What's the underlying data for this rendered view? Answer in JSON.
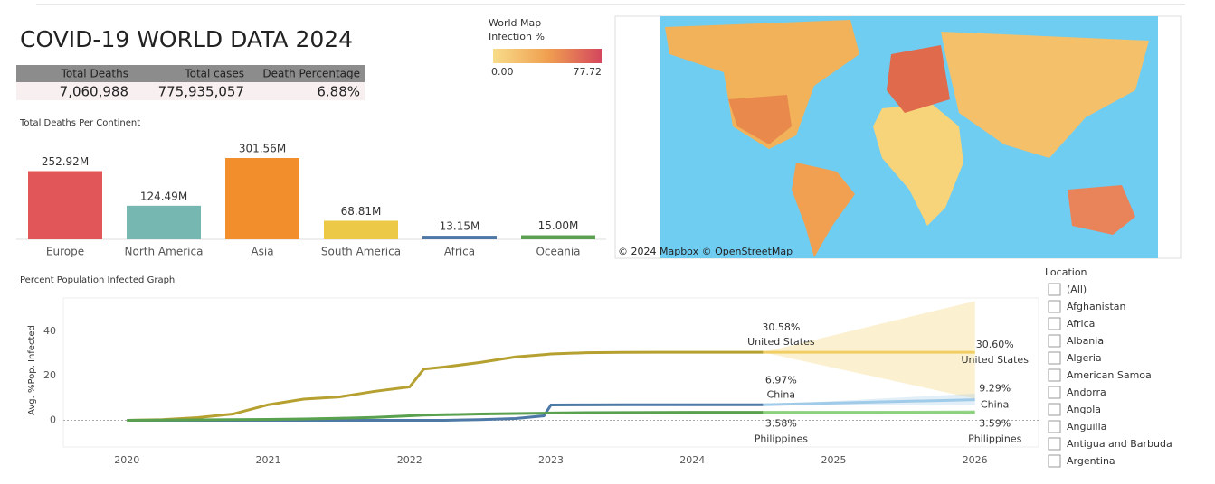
{
  "title": "COVID-19 WORLD DATA 2024",
  "kpi": {
    "headers": [
      "Total Deaths",
      "Total cases",
      "Death Percentage"
    ],
    "values": [
      "7,060,988",
      "775,935,057",
      "6.88%"
    ]
  },
  "map": {
    "legend_title": "World Map",
    "legend_subtitle": "Infection %",
    "legend_ticks": [
      {
        "value": 0,
        "label": "0.00"
      },
      77.72
    ],
    "colors": [
      "#f7dc8a",
      "#f0a050",
      "#d4475e"
    ],
    "attribution": "© 2024 Mapbox © OpenStreetMap"
  },
  "filter": {
    "title": "Location",
    "items": [
      "(All)",
      "Afghanistan",
      "Africa",
      "Albania",
      "Algeria",
      "American Samoa",
      "Andorra",
      "Angola",
      "Anguilla",
      "Antigua and Barbuda",
      "Argentina"
    ]
  },
  "chart_data": [
    {
      "type": "bar",
      "title": "Total Deaths Per Continent",
      "categories": [
        "Europe",
        "North America",
        "Asia",
        "South America",
        "Africa",
        "Oceania"
      ],
      "values": [
        252.92,
        124.49,
        301.56,
        68.81,
        13.15,
        15.0
      ],
      "value_labels": [
        "252.92M",
        "124.49M",
        "301.56M",
        "68.81M",
        "13.15M",
        "15.00M"
      ],
      "colors": [
        "#e15759",
        "#76b7b2",
        "#f28e2b",
        "#edc948",
        "#4e79a7",
        "#59a14f"
      ]
    },
    {
      "type": "line",
      "title": "Percent Population Infected Graph",
      "y_label": "Avg. %Pop. Infected",
      "x": [
        2020,
        2020.25,
        2020.5,
        2020.75,
        2021,
        2021.25,
        2021.5,
        2021.75,
        2022,
        2022.1,
        2022.25,
        2022.5,
        2022.75,
        2022.95,
        2023,
        2023.25,
        2023.5,
        2023.75,
        2024,
        2024.25,
        2024.5
      ],
      "xlim": [
        2019.55,
        2026.45
      ],
      "xticks": [
        2020,
        2021,
        2022,
        2023,
        2024,
        2025,
        2026
      ],
      "ylim": [
        -12,
        55
      ],
      "yticks": [
        0,
        20,
        40
      ],
      "series": [
        {
          "name": "United States",
          "color": "#b5a030",
          "values": [
            0,
            0.3,
            1.2,
            2.8,
            7,
            9.5,
            10.5,
            13,
            15,
            23,
            24,
            26,
            28.5,
            29.5,
            29.8,
            30.4,
            30.55,
            30.58,
            30.58,
            30.58,
            30.58
          ],
          "forecast": {
            "x": [
              2024.5,
              2026
            ],
            "values": [
              30.58,
              30.6
            ],
            "value_labels": [
              "30.58%",
              "30.60%"
            ],
            "lower": [
              30.58,
              9.7
            ],
            "upper": [
              30.58,
              53.6
            ],
            "color": "#f1ce63"
          }
        },
        {
          "name": "China",
          "color": "#4e79a7",
          "values": [
            0,
            0,
            0,
            0,
            0,
            0,
            0,
            0,
            0,
            0,
            0,
            0.3,
            0.8,
            2,
            6.9,
            6.95,
            6.97,
            6.97,
            6.97,
            6.97,
            6.97
          ],
          "forecast": {
            "x": [
              2024.5,
              2026
            ],
            "values": [
              6.97,
              9.29
            ],
            "value_labels": [
              "6.97%",
              "9.29%"
            ],
            "lower": [
              6.97,
              7
            ],
            "upper": [
              6.97,
              12
            ],
            "color": "#a0cbe8"
          }
        },
        {
          "name": "Philippines",
          "color": "#59a14f",
          "values": [
            0,
            0.1,
            0.2,
            0.3,
            0.4,
            0.6,
            0.9,
            1.3,
            2,
            2.3,
            2.5,
            2.8,
            3,
            3.2,
            3.3,
            3.45,
            3.5,
            3.55,
            3.57,
            3.58,
            3.58
          ],
          "forecast": {
            "x": [
              2024.5,
              2026
            ],
            "values": [
              3.58,
              3.59
            ],
            "value_labels": [
              "3.58%",
              "3.59%"
            ],
            "lower": [
              3.58,
              2.5
            ],
            "upper": [
              3.58,
              4.6
            ],
            "color": "#8cd17d"
          }
        }
      ]
    }
  ]
}
